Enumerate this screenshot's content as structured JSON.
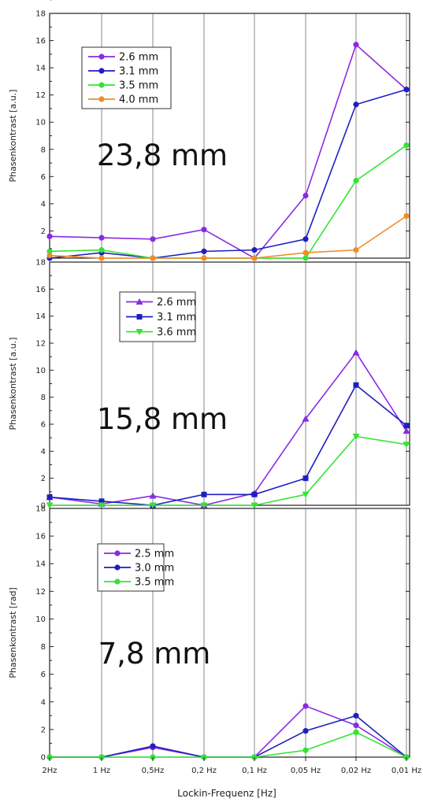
{
  "xaxis": {
    "label": "Lockin-Frequenz [Hz]",
    "tick_labels": [
      "2Hz",
      "1 Hz",
      "0,5Hz",
      "0,2 Hz",
      "0,1 Hz",
      "0,05 Hz",
      "0,02 Hz",
      "0,01 Hz"
    ]
  },
  "chart_data": [
    {
      "type": "line",
      "annotation": "23,8 mm",
      "ylabel": "Phasenkontrast [a.u.]",
      "ylim": [
        0,
        18
      ],
      "yticks": [
        2,
        4,
        6,
        8,
        10,
        12,
        14,
        16,
        18
      ],
      "categories": [
        "2Hz",
        "1 Hz",
        "0,5Hz",
        "0,2 Hz",
        "0,1 Hz",
        "0,05 Hz",
        "0,02 Hz",
        "0,01 Hz"
      ],
      "legend_position": "top-left",
      "series": [
        {
          "name": "2.6 mm",
          "color": "#8a2be2",
          "marker": "circle",
          "values": [
            1.6,
            1.5,
            1.4,
            2.1,
            0.0,
            4.6,
            15.7,
            12.4
          ]
        },
        {
          "name": "3.1 mm",
          "color": "#1f1fbf",
          "marker": "circle",
          "values": [
            0.0,
            0.4,
            0.0,
            0.5,
            0.6,
            1.4,
            11.3,
            12.4
          ]
        },
        {
          "name": "3.5 mm",
          "color": "#33e433",
          "marker": "circle",
          "values": [
            0.5,
            0.6,
            0.0,
            0.0,
            0.0,
            0.0,
            5.7,
            8.3
          ]
        },
        {
          "name": "4.0 mm",
          "color": "#f08c2a",
          "marker": "circle",
          "values": [
            0.2,
            0.0,
            0.0,
            0.0,
            0.0,
            0.4,
            0.6,
            3.1
          ]
        }
      ]
    },
    {
      "type": "line",
      "annotation": "15,8 mm",
      "ylabel": "Phasenkontrast [a.u.]",
      "ylim": [
        0,
        18
      ],
      "yticks": [
        0,
        2,
        4,
        6,
        8,
        10,
        12,
        14,
        16,
        18
      ],
      "categories": [
        "2Hz",
        "1 Hz",
        "0,5Hz",
        "0,2 Hz",
        "0,1 Hz",
        "0,05 Hz",
        "0,02 Hz",
        "0,01 Hz"
      ],
      "legend_position": "top-left",
      "series": [
        {
          "name": "2.6 mm",
          "color": "#8a2be2",
          "marker": "triangle-up",
          "values": [
            0.6,
            0.1,
            0.7,
            0.0,
            0.9,
            6.4,
            11.3,
            5.5
          ]
        },
        {
          "name": "3.1 mm",
          "color": "#1f1fbf",
          "marker": "square",
          "values": [
            0.6,
            0.3,
            0.0,
            0.8,
            0.8,
            2.0,
            8.9,
            5.9
          ]
        },
        {
          "name": "3.6 mm",
          "color": "#33e433",
          "marker": "triangle-down",
          "values": [
            0.0,
            0.0,
            0.0,
            0.0,
            0.0,
            0.8,
            5.1,
            4.5
          ]
        }
      ]
    },
    {
      "type": "line",
      "annotation": "7,8 mm",
      "ylabel": "Phasenkontrast [rad]",
      "ylim": [
        0,
        18
      ],
      "yticks": [
        0,
        2,
        4,
        6,
        8,
        10,
        12,
        14,
        16,
        18
      ],
      "categories": [
        "2Hz",
        "1 Hz",
        "0,5Hz",
        "0,2 Hz",
        "0,1 Hz",
        "0,05 Hz",
        "0,02 Hz",
        "0,01 Hz"
      ],
      "legend_position": "top-left",
      "series": [
        {
          "name": "2.5 mm",
          "color": "#8a2be2",
          "marker": "circle",
          "values": [
            0.0,
            0.0,
            0.7,
            0.0,
            0.0,
            3.7,
            2.3,
            0.0
          ]
        },
        {
          "name": "3.0 mm",
          "color": "#1f1fbf",
          "marker": "circle",
          "values": [
            0.0,
            0.0,
            0.8,
            0.0,
            0.0,
            1.9,
            3.0,
            0.0
          ]
        },
        {
          "name": "3.5 mm",
          "color": "#33e433",
          "marker": "circle",
          "values": [
            0.0,
            0.0,
            0.0,
            0.0,
            0.0,
            0.5,
            1.8,
            0.0
          ]
        }
      ]
    }
  ]
}
